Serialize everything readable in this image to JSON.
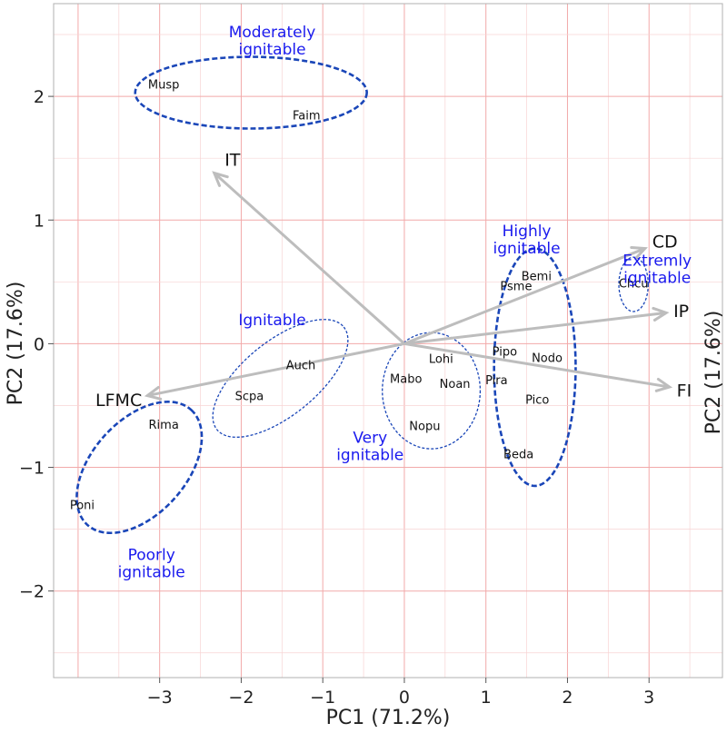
{
  "chart_data": {
    "type": "scatter",
    "subtype": "pca-biplot",
    "xlabel": "PC1 (71.2%)",
    "ylabel": "PC2 (17.6%)",
    "ylabel_right": "PC2 (17.6%)",
    "xlim": [
      -4.3,
      3.9
    ],
    "ylim": [
      -2.7,
      2.75
    ],
    "x_ticks": [
      -3,
      -2,
      -1,
      0,
      1,
      2,
      3
    ],
    "x_tick_labels": [
      "−3",
      "−2",
      "−1",
      "0",
      "1",
      "2",
      "3"
    ],
    "y_ticks": [
      2,
      1,
      0,
      -1,
      -2
    ],
    "y_tick_labels": [
      "2",
      "1",
      "0",
      "−1",
      "−2"
    ],
    "grid": true,
    "colors": {
      "grid_major": "#f2a9a9",
      "grid_minor": "#f7d4d4",
      "vector": "#bdbdbd",
      "ellipse": "#1a46b8",
      "group_label": "#1a1aee",
      "text": "#111111"
    },
    "points": [
      {
        "label": "Musp",
        "x": -2.95,
        "y": 2.1
      },
      {
        "label": "Faim",
        "x": -1.2,
        "y": 1.85
      },
      {
        "label": "Auch",
        "x": -1.27,
        "y": -0.17
      },
      {
        "label": "Scpa",
        "x": -1.9,
        "y": -0.42
      },
      {
        "label": "Rima",
        "x": -2.95,
        "y": -0.65
      },
      {
        "label": "Poni",
        "x": -3.95,
        "y": -1.3
      },
      {
        "label": "Lohi",
        "x": 0.45,
        "y": -0.12
      },
      {
        "label": "Mabo",
        "x": 0.02,
        "y": -0.28
      },
      {
        "label": "Noan",
        "x": 0.62,
        "y": -0.32
      },
      {
        "label": "Nopu",
        "x": 0.25,
        "y": -0.66
      },
      {
        "label": "Pira",
        "x": 1.13,
        "y": -0.29
      },
      {
        "label": "Pipo",
        "x": 1.23,
        "y": -0.06
      },
      {
        "label": "Nodo",
        "x": 1.75,
        "y": -0.11
      },
      {
        "label": "Pico",
        "x": 1.63,
        "y": -0.45
      },
      {
        "label": "Beda",
        "x": 1.4,
        "y": -0.89
      },
      {
        "label": "Bemi",
        "x": 1.62,
        "y": 0.55
      },
      {
        "label": "Psme",
        "x": 1.37,
        "y": 0.47
      },
      {
        "label": "Chcu",
        "x": 2.81,
        "y": 0.49
      }
    ],
    "vectors": [
      {
        "label": "IT",
        "x": -2.33,
        "y": 1.38
      },
      {
        "label": "CD",
        "x": 2.95,
        "y": 0.77
      },
      {
        "label": "IP",
        "x": 3.21,
        "y": 0.25
      },
      {
        "label": "FI",
        "x": 3.25,
        "y": -0.35
      },
      {
        "label": "LFMC",
        "x": -3.15,
        "y": -0.42
      }
    ],
    "groups": [
      {
        "label_lines": [
          "Moderately",
          "ignitable"
        ],
        "cx": -1.88,
        "cy": 2.03,
        "rx": 1.42,
        "ry": 0.29,
        "angle": 0,
        "style": "bold",
        "label_x": -1.62,
        "label_y": 2.48
      },
      {
        "label_lines": [
          "Ignitable"
        ],
        "cx": -1.52,
        "cy": -0.28,
        "rx": 1.0,
        "ry": 0.3,
        "angle": 39,
        "style": "thin",
        "label_x": -1.62,
        "label_y": 0.15
      },
      {
        "label_lines": [
          "Poorly",
          "ignitable"
        ],
        "cx": -3.25,
        "cy": -1.0,
        "rx": 0.95,
        "ry": 0.38,
        "angle": 48,
        "style": "bold",
        "label_x": -3.1,
        "label_y": -1.75
      },
      {
        "label_lines": [
          "Very",
          "ignitable"
        ],
        "cx": 0.33,
        "cy": -0.38,
        "rx": 0.6,
        "ry": 0.47,
        "angle": 0,
        "style": "thin",
        "label_x": -0.42,
        "label_y": -0.8
      },
      {
        "label_lines": [
          "Highly",
          "ignitable"
        ],
        "cx": 1.6,
        "cy": -0.19,
        "rx": 0.5,
        "ry": 0.96,
        "angle": 0,
        "style": "bold",
        "label_x": 1.5,
        "label_y": 0.87
      },
      {
        "label_lines": [
          "Extremly",
          "ignitable"
        ],
        "cx": 2.81,
        "cy": 0.48,
        "rx": 0.18,
        "ry": 0.22,
        "angle": 0,
        "style": "thin",
        "label_x": 3.1,
        "label_y": 0.63
      }
    ]
  }
}
